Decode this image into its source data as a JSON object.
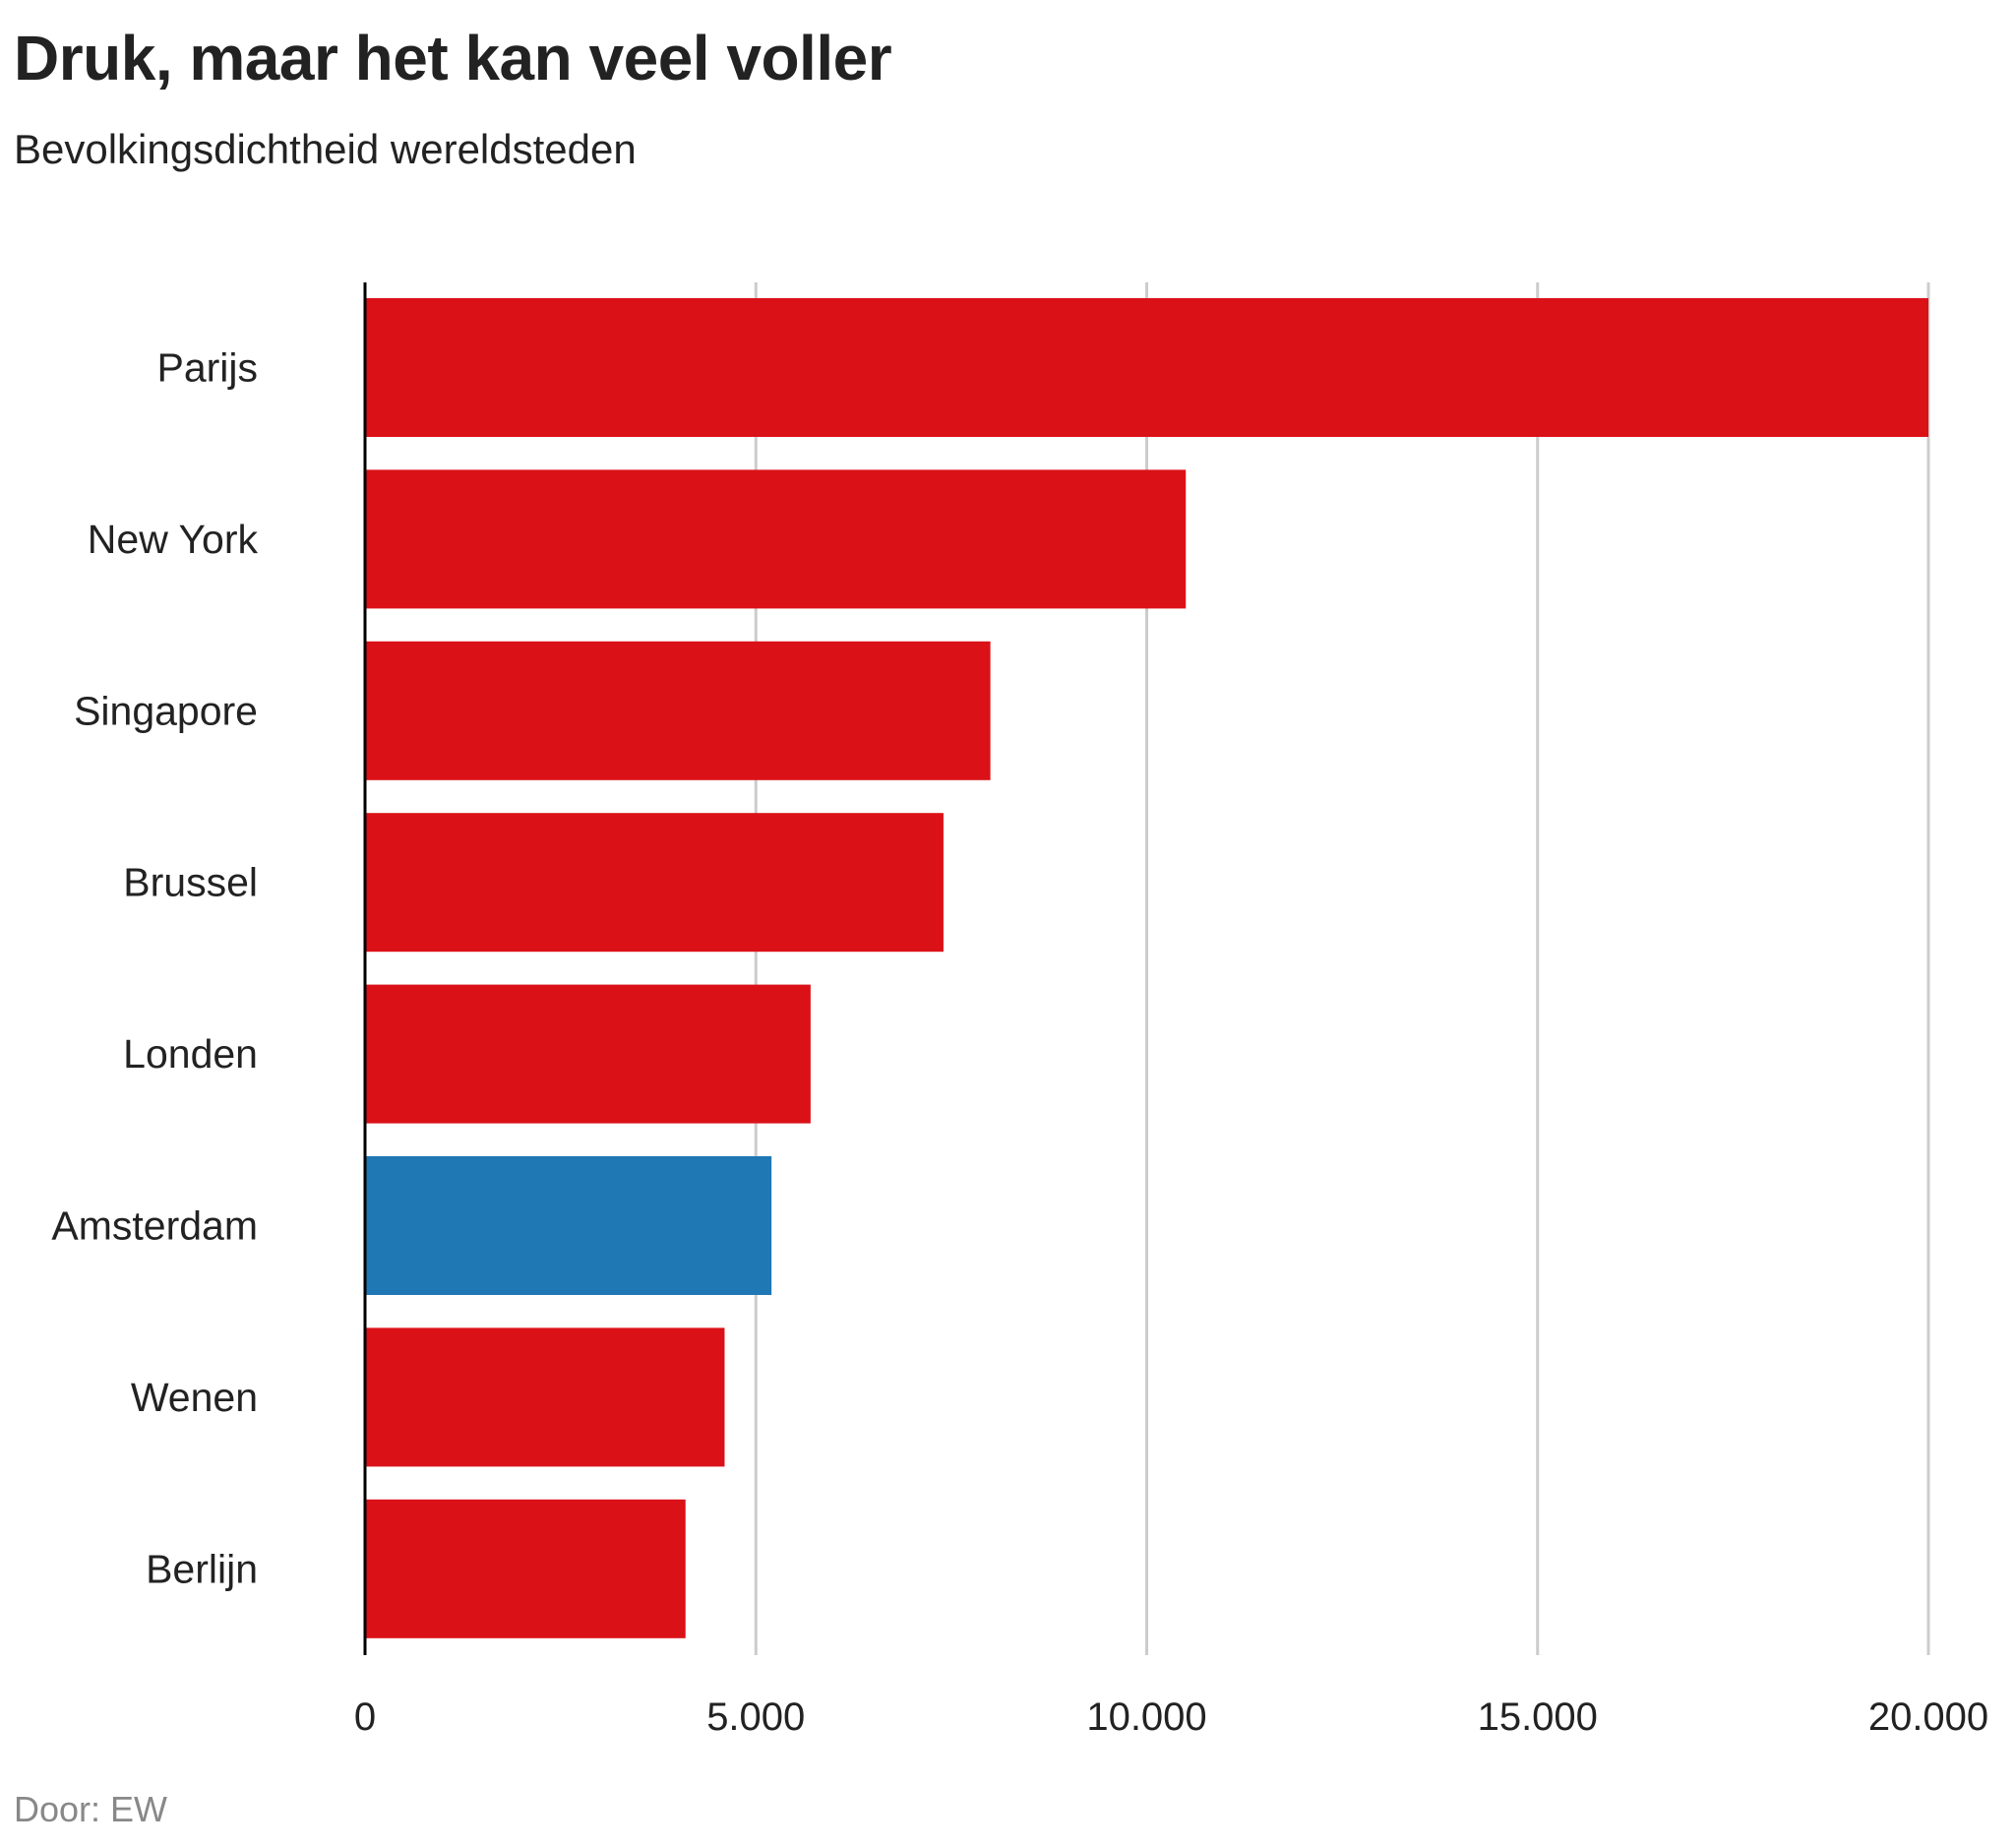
{
  "title": "Druk, maar het kan veel voller",
  "subtitle": "Bevolkingsdichtheid wereldsteden",
  "footer": "Door: EW",
  "chart_data": {
    "type": "bar",
    "orientation": "horizontal",
    "title": "Druk, maar het kan veel voller",
    "subtitle": "Bevolkingsdichtheid wereldsteden",
    "categories": [
      "Parijs",
      "New York",
      "Singapore",
      "Brussel",
      "Londen",
      "Amsterdam",
      "Wenen",
      "Berlijn"
    ],
    "values": [
      20000,
      10500,
      8000,
      7400,
      5700,
      5200,
      4600,
      4100
    ],
    "colors": [
      "#db1118",
      "#db1118",
      "#db1118",
      "#db1118",
      "#db1118",
      "#1f77b4",
      "#db1118",
      "#db1118"
    ],
    "xlim": [
      0,
      20000
    ],
    "xticks": [
      0,
      5000,
      10000,
      15000,
      20000
    ],
    "xtick_labels": [
      "0",
      "5.000",
      "10.000",
      "15.000",
      "20.000"
    ],
    "grid": "vertical",
    "xlabel": "",
    "ylabel": ""
  }
}
